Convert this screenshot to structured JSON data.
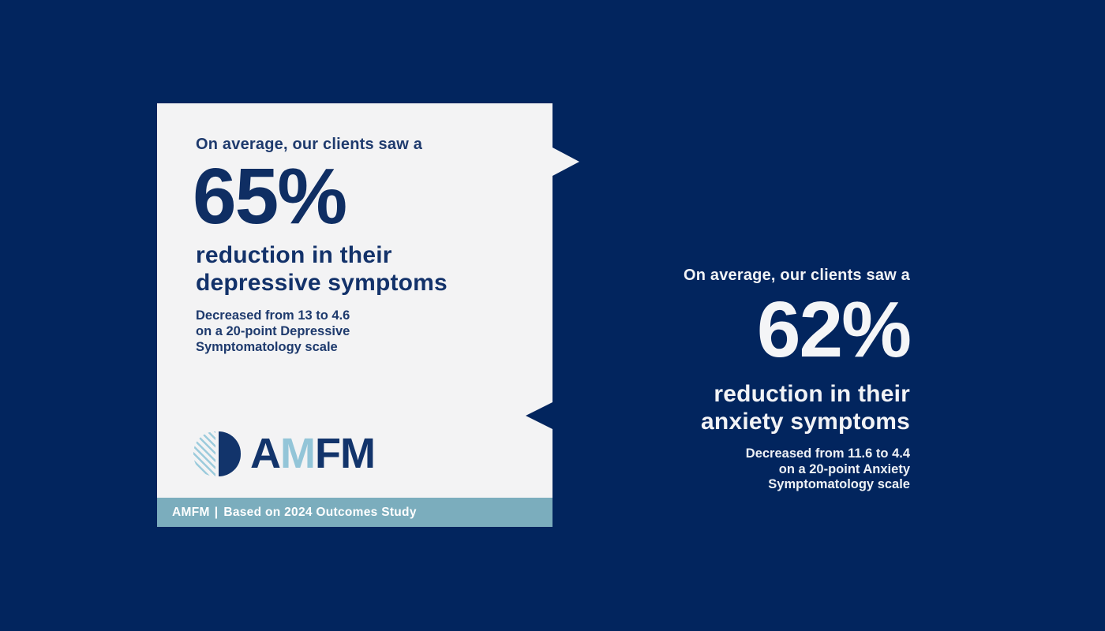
{
  "colors": {
    "background": "#02255e",
    "card_bg": "#f3f3f4",
    "card_text_navy": "#13326a",
    "stat_navy": "#0f2e63",
    "banner_bg": "#7badbd",
    "logo_light_blue": "#93c5d8",
    "right_text_white": "#f2f3f6"
  },
  "left_card": {
    "intro": "On average, our clients saw a",
    "stat": "65%",
    "headline_line1": "reduction in their",
    "headline_line2": "depressive symptoms",
    "detail": {
      "l1_a": "Decreased from ",
      "l1_from": "13",
      "l1_b": " to ",
      "l1_to": "4.6",
      "l2": "on a 20-point Depressive",
      "l3": "Symptomatology scale"
    },
    "logo": {
      "letter1": "A",
      "letter2": "M",
      "letter3": "F",
      "letter4": "M"
    },
    "banner": {
      "brand": "AMFM",
      "separator": "|",
      "note": "Based on 2024 Outcomes Study"
    }
  },
  "right_block": {
    "intro": "On average, our clients saw a",
    "stat": "62%",
    "headline_line1": "reduction in their",
    "headline_line2": "anxiety symptoms",
    "detail": {
      "l1_a": "Decreased from ",
      "l1_from": "11.6",
      "l1_b": " to ",
      "l1_to": "4.4",
      "l2": "on a 20-point Anxiety",
      "l3": "Symptomatology scale"
    }
  }
}
